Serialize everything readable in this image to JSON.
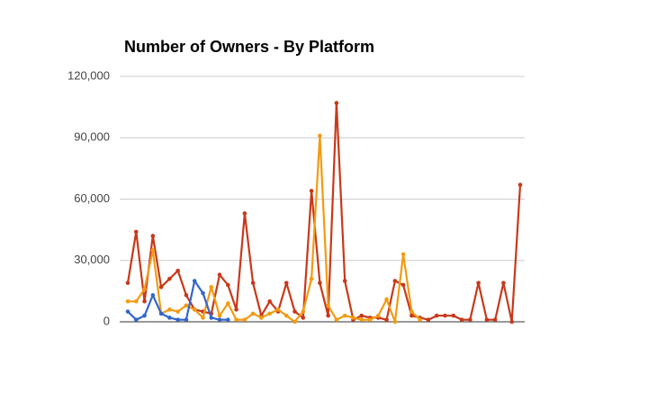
{
  "chart_data": {
    "type": "line",
    "title": "Number of Owners - By Platform",
    "categories": [
      null,
      null,
      null,
      null,
      null,
      null,
      null,
      null,
      null,
      null,
      null,
      null,
      null,
      null,
      null,
      null,
      null,
      null,
      null,
      null,
      null,
      null,
      null,
      null,
      null,
      null,
      null,
      null,
      null,
      null,
      null,
      null,
      null,
      null,
      null,
      null,
      null,
      null,
      null,
      null,
      null,
      null,
      null,
      null,
      null,
      null,
      null,
      null
    ],
    "series": [
      {
        "color": "#c8391a",
        "values": [
          19000,
          44000,
          10000,
          42000,
          17000,
          21000,
          25000,
          13000,
          6000,
          5000,
          4000,
          23000,
          18000,
          6000,
          53000,
          19000,
          3000,
          10000,
          5000,
          19000,
          5000,
          2000,
          64000,
          19000,
          3000,
          107000,
          20000,
          1000,
          3000,
          2000,
          2000,
          1000,
          20000,
          18000,
          3000,
          2000,
          1000,
          3000,
          3000,
          3000,
          1000,
          1000,
          19000,
          1000,
          1000,
          19000,
          0,
          67000
        ]
      },
      {
        "color": "#f29b12",
        "values": [
          10000,
          10000,
          16000,
          35000,
          4000,
          6000,
          5000,
          8000,
          6000,
          2000,
          17000,
          3000,
          9000,
          1000,
          1000,
          4000,
          2000,
          4000,
          6000,
          3000,
          0,
          5000,
          21000,
          91000,
          8000,
          1000,
          3000,
          2000,
          1000,
          1000,
          3000,
          11000,
          0,
          33000,
          5000,
          1000,
          null,
          null,
          null,
          null,
          null,
          null,
          null,
          null,
          null,
          null,
          null,
          null
        ]
      },
      {
        "color": "#3366cc",
        "values": [
          5000,
          1000,
          3000,
          13000,
          4000,
          2000,
          1000,
          1000,
          20000,
          14000,
          2000,
          1000,
          1000,
          null,
          null,
          null,
          null,
          null,
          null,
          null,
          null,
          null,
          null,
          null,
          null,
          null,
          null,
          null,
          null,
          null,
          null,
          null,
          null,
          null,
          null,
          null,
          null,
          null,
          null,
          null,
          null,
          null,
          null,
          null,
          null,
          null,
          null,
          null
        ]
      }
    ],
    "ylim": [
      0,
      120000
    ],
    "yticks": [
      {
        "value": 0,
        "label": "0"
      },
      {
        "value": 30000,
        "label": "30,000"
      },
      {
        "value": 60000,
        "label": "60,000"
      },
      {
        "value": 90000,
        "label": "90,000"
      },
      {
        "value": 120000,
        "label": "120,000"
      }
    ],
    "grid": true
  }
}
